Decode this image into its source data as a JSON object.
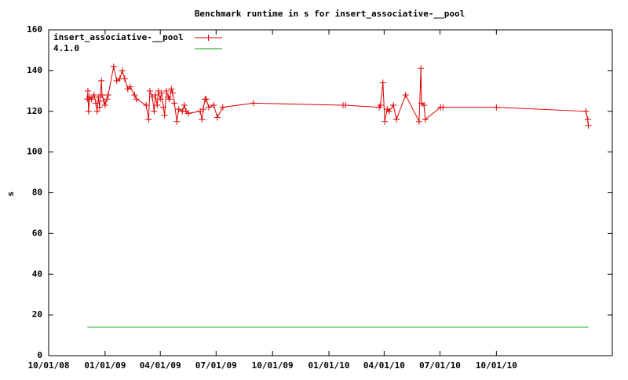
{
  "chart_data": {
    "type": "line",
    "title": "Benchmark runtime in s for insert_associative-__pool",
    "y_label": "s",
    "xlim": [
      "2008-10-01",
      "2011-04-08"
    ],
    "ylim": [
      0,
      160
    ],
    "yticks": [
      0,
      20,
      40,
      60,
      80,
      100,
      120,
      140,
      160
    ],
    "xticks": [
      {
        "value": "2008-10-01",
        "label": "10/01/08"
      },
      {
        "value": "2009-01-01",
        "label": "01/01/09"
      },
      {
        "value": "2009-04-01",
        "label": "04/01/09"
      },
      {
        "value": "2009-07-01",
        "label": "07/01/09"
      },
      {
        "value": "2009-10-01",
        "label": "10/01/09"
      },
      {
        "value": "2010-01-01",
        "label": "01/01/10"
      },
      {
        "value": "2010-04-01",
        "label": "04/01/10"
      },
      {
        "value": "2010-07-01",
        "label": "07/01/10"
      },
      {
        "value": "2010-10-01",
        "label": "10/01/10"
      }
    ],
    "legend": "top-left",
    "series": [
      {
        "name": "insert_associative-__pool",
        "color": "#dd0000",
        "markers": true,
        "x": [
          "2008-12-03",
          "2008-12-04",
          "2008-12-05",
          "2008-12-07",
          "2008-12-10",
          "2008-12-14",
          "2008-12-17",
          "2008-12-19",
          "2008-12-21",
          "2008-12-23",
          "2008-12-26",
          "2008-12-27",
          "2008-12-30",
          "2009-01-01",
          "2009-01-04",
          "2009-01-06",
          "2009-01-15",
          "2009-01-20",
          "2009-01-25",
          "2009-01-29",
          "2009-02-02",
          "2009-02-07",
          "2009-02-11",
          "2009-02-18",
          "2009-02-21",
          "2009-03-09",
          "2009-03-13",
          "2009-03-15",
          "2009-03-19",
          "2009-03-22",
          "2009-03-24",
          "2009-03-27",
          "2009-03-29",
          "2009-04-01",
          "2009-04-03",
          "2009-04-06",
          "2009-04-08",
          "2009-04-11",
          "2009-04-14",
          "2009-04-16",
          "2009-04-19",
          "2009-04-21",
          "2009-04-24",
          "2009-04-28",
          "2009-05-01",
          "2009-05-07",
          "2009-05-10",
          "2009-05-13",
          "2009-05-17",
          "2009-06-05",
          "2009-06-08",
          "2009-06-10",
          "2009-06-13",
          "2009-06-15",
          "2009-06-19",
          "2009-06-27",
          "2009-07-03",
          "2009-07-12",
          "2009-08-31",
          "2010-01-24",
          "2010-01-28",
          "2010-03-24",
          "2010-03-26",
          "2010-03-30",
          "2010-04-02",
          "2010-04-06",
          "2010-04-09",
          "2010-04-16",
          "2010-04-21",
          "2010-05-06",
          "2010-05-28",
          "2010-05-31",
          "2010-06-01",
          "2010-06-05",
          "2010-06-07",
          "2010-07-02",
          "2010-07-06",
          "2010-10-01",
          "2011-02-24",
          "2011-02-27",
          "2011-02-28"
        ],
        "values": [
          126,
          130,
          120,
          127,
          126,
          128,
          124,
          120,
          127,
          122,
          135,
          128,
          125,
          123,
          126,
          128,
          142,
          135,
          136,
          140,
          136,
          131,
          132,
          128,
          126,
          123,
          116,
          130,
          127,
          120,
          128,
          123,
          130,
          126,
          129,
          122,
          118,
          130,
          127,
          126,
          131,
          129,
          124,
          115,
          121,
          120,
          123,
          120,
          119,
          120,
          116,
          121,
          126,
          126,
          122,
          123,
          117,
          122,
          124,
          123,
          123,
          122,
          123,
          134,
          115,
          121,
          120,
          123,
          116,
          128,
          115,
          141,
          124,
          123,
          116,
          122,
          122,
          122,
          120,
          116,
          113
        ]
      },
      {
        "name": "4.1.0",
        "color": "#00a000",
        "markers": false,
        "x": [
          "2008-12-03",
          "2011-02-28"
        ],
        "values": [
          14,
          14
        ]
      }
    ]
  }
}
